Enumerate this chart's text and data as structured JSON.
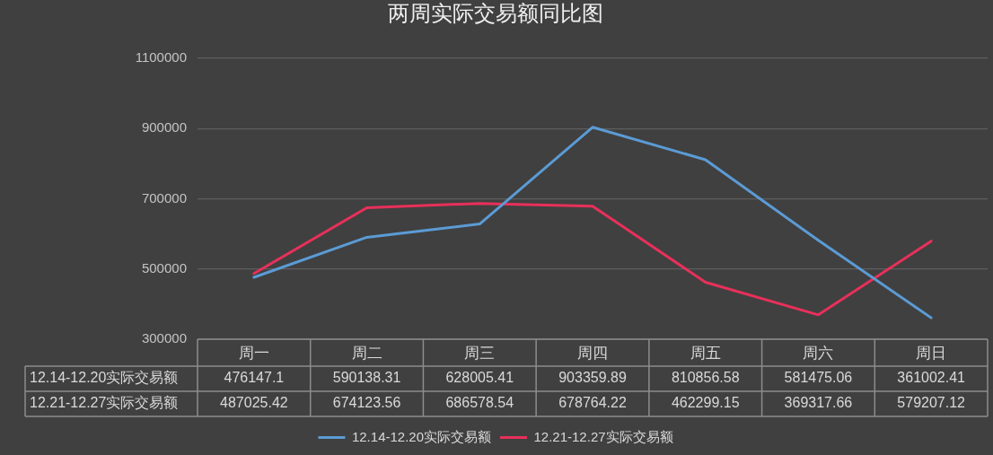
{
  "chart_data": {
    "type": "line",
    "title": "两周实际交易额同比图",
    "categories": [
      "周一",
      "周二",
      "周三",
      "周四",
      "周五",
      "周六",
      "周日"
    ],
    "series": [
      {
        "name": "12.14-12.20实际交易额",
        "color": "#5b9bd5",
        "values": [
          476147.1,
          590138.31,
          628005.41,
          903359.89,
          810856.58,
          581475.06,
          361002.41
        ]
      },
      {
        "name": "12.21-12.27实际交易额",
        "color": "#e8305a",
        "values": [
          487025.42,
          674123.56,
          686578.54,
          678764.22,
          462299.15,
          369317.66,
          579207.12
        ]
      }
    ],
    "ylim": [
      300000,
      1100000
    ],
    "yticks": [
      300000,
      500000,
      700000,
      900000,
      1100000
    ],
    "grid": "y",
    "legend": "bottom",
    "data_labels": true,
    "marker": "none",
    "line_style": "solid"
  }
}
